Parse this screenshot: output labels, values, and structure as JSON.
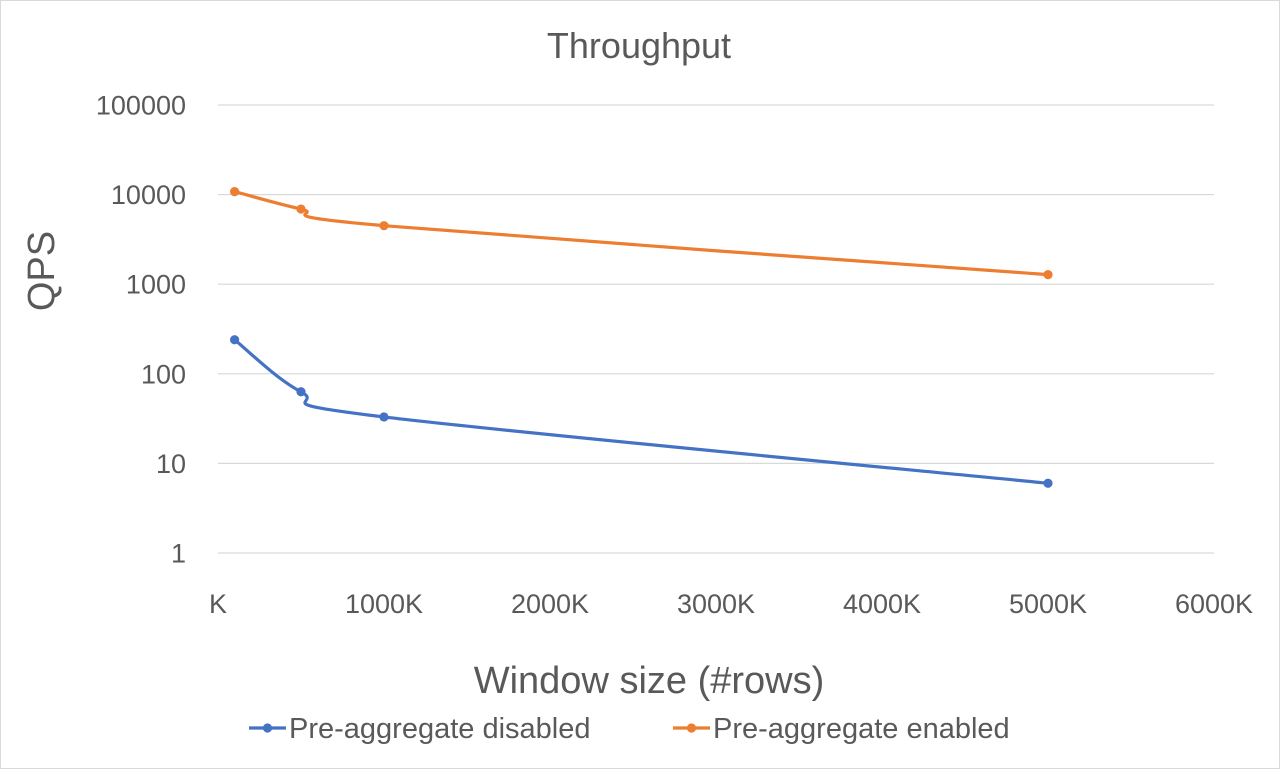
{
  "chart_data": {
    "type": "line",
    "title": "Throughput",
    "xlabel": "Window size (#rows)",
    "ylabel": "QPS",
    "yscale": "log",
    "ylim": [
      1,
      100000
    ],
    "xlim": [
      0,
      6000
    ],
    "grid": true,
    "legend_position": "bottom",
    "y_ticks": [
      1,
      10,
      100,
      1000,
      10000,
      100000
    ],
    "y_tick_labels": [
      "1",
      "10",
      "100",
      "1000",
      "10000",
      "100000"
    ],
    "x_ticks": [
      0,
      1000,
      2000,
      3000,
      4000,
      5000,
      6000
    ],
    "x_tick_labels": [
      "K",
      "1000K",
      "2000K",
      "3000K",
      "4000K",
      "5000K",
      "6000K"
    ],
    "x_unit": "K rows",
    "series": [
      {
        "name": "Pre-aggregate disabled",
        "color": "#4472C4",
        "x": [
          100,
          500,
          1000,
          5000
        ],
        "y": [
          240,
          63,
          33,
          6
        ]
      },
      {
        "name": "Pre-aggregate enabled",
        "color": "#ED7D31",
        "x": [
          100,
          500,
          1000,
          5000
        ],
        "y": [
          10800,
          6900,
          4500,
          1280
        ]
      }
    ]
  }
}
